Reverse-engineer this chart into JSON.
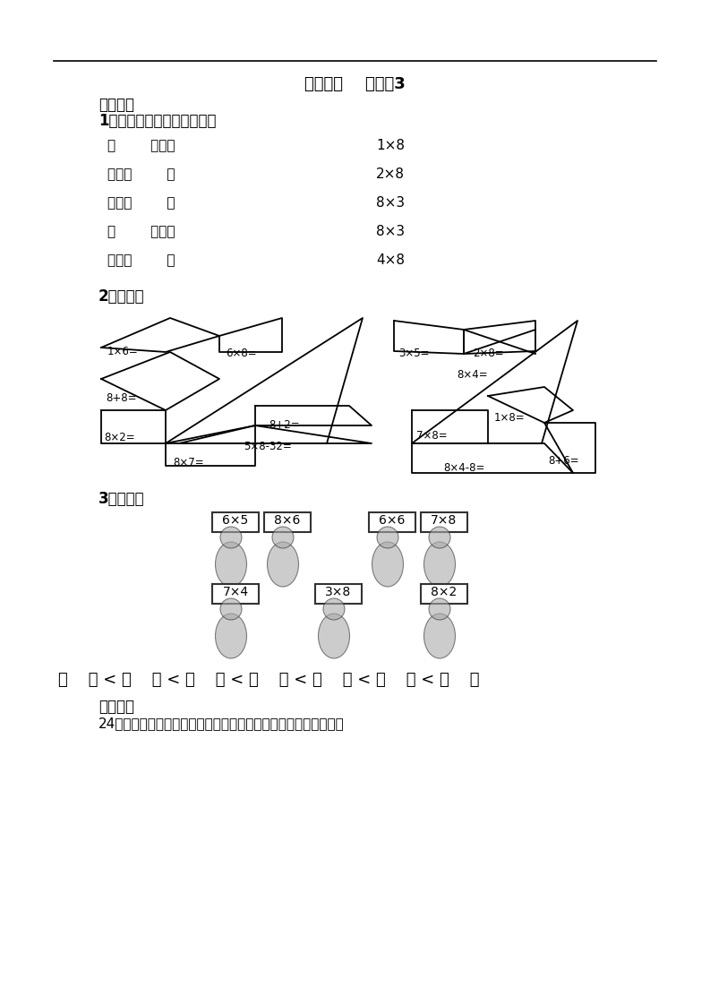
{
  "title": "第四单元    信息窗3",
  "section1_header": "基本练习",
  "section1_title": "1、把口诀填完整后再连一连",
  "left_items": [
    "（        ）十六",
    "三八（        ）",
    "五八（        ）",
    "（        ）得八",
    "四八（        ）"
  ],
  "right_items": [
    "1×8",
    "2×8",
    "8×3",
    "8×3",
    "4×8"
  ],
  "section2_title": "2、算一算",
  "section3_title": "3、排一排",
  "card_labels_row1": [
    "6×5",
    "8×6",
    "6×6",
    "7×8"
  ],
  "card_labels_row2": [
    "7×4",
    "3×8",
    "8×2"
  ],
  "section4_header": "拓展练习",
  "section4_text": "24个同学站队做操，每行人数相等，可以怎样排队？有几种排法？",
  "bg_color": "#ffffff",
  "text_color": "#000000"
}
